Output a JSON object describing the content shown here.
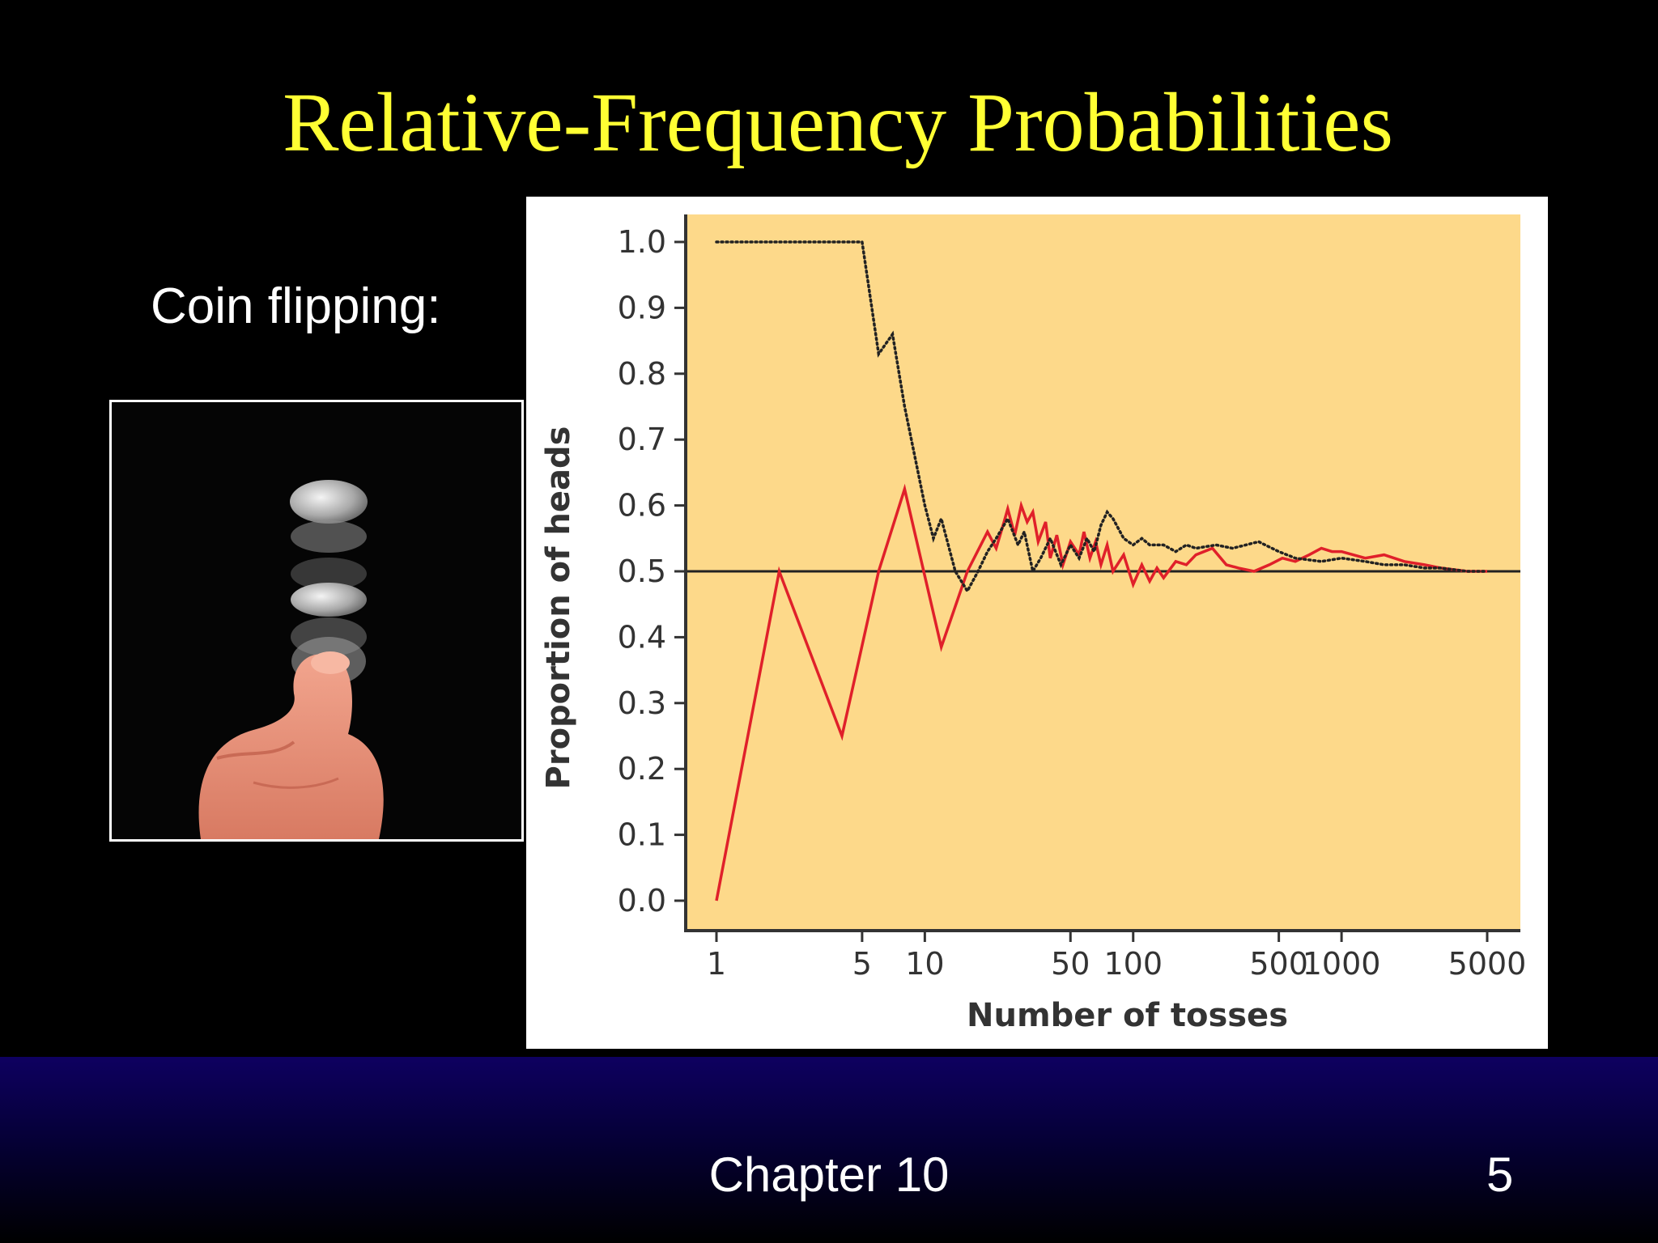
{
  "slide": {
    "title": "Relative-Frequency Probabilities",
    "caption": "Coin flipping:",
    "footer_label": "Chapter 10",
    "page_number": "5"
  },
  "colors": {
    "title": "#FFFF33",
    "plot_background": "#FDD98A",
    "solid_series": "#E0202A",
    "dotted_series": "#222222",
    "reference_line": "#222222",
    "footer_top": "#0E0060"
  },
  "photo": {
    "subject": "hand flipping a coin (stroboscopic)",
    "icon": "coin-flip-photo"
  },
  "chart_data": {
    "type": "line",
    "title": "",
    "xlabel": "Number of tosses",
    "ylabel": "Proportion of  heads",
    "x_scale": "log",
    "xlim": [
      1,
      5000
    ],
    "ylim": [
      0,
      1
    ],
    "x_ticks": [
      1,
      5,
      10,
      50,
      100,
      500,
      1000,
      5000
    ],
    "x_tick_labels": [
      "1",
      "5",
      "10",
      "50",
      "100",
      "500",
      "1000",
      "5000"
    ],
    "y_ticks": [
      0,
      0.1,
      0.2,
      0.3,
      0.4,
      0.5,
      0.6,
      0.7,
      0.8,
      0.9,
      1.0
    ],
    "y_tick_labels": [
      "0.0",
      "0.1",
      "0.2",
      "0.3",
      "0.4",
      "0.5",
      "0.6",
      "0.7",
      "0.8",
      "0.9",
      "1.0"
    ],
    "grid": false,
    "reference_line": {
      "y": 0.5
    },
    "series": [
      {
        "style": "solid",
        "color": "#E0202A",
        "x": [
          1,
          2,
          4,
          6,
          8,
          12,
          16,
          20,
          22,
          24,
          25,
          27,
          29,
          31,
          33,
          35,
          38,
          40,
          43,
          46,
          50,
          55,
          58,
          62,
          66,
          70,
          75,
          80,
          90,
          100,
          110,
          120,
          130,
          140,
          160,
          180,
          200,
          240,
          280,
          320,
          380,
          450,
          520,
          600,
          700,
          800,
          900,
          1000,
          1300,
          1600,
          2000,
          2500,
          3000,
          4000,
          5000
        ],
        "y": [
          0.0,
          0.5,
          0.25,
          0.5,
          0.625,
          0.385,
          0.5,
          0.56,
          0.535,
          0.575,
          0.595,
          0.555,
          0.6,
          0.575,
          0.59,
          0.545,
          0.575,
          0.52,
          0.555,
          0.51,
          0.545,
          0.525,
          0.56,
          0.52,
          0.545,
          0.51,
          0.54,
          0.5,
          0.525,
          0.48,
          0.51,
          0.485,
          0.505,
          0.49,
          0.515,
          0.51,
          0.525,
          0.535,
          0.51,
          0.505,
          0.5,
          0.51,
          0.52,
          0.515,
          0.525,
          0.535,
          0.53,
          0.53,
          0.52,
          0.525,
          0.515,
          0.51,
          0.505,
          0.5,
          0.5
        ]
      },
      {
        "style": "dotted",
        "color": "#222222",
        "x": [
          1,
          5,
          6,
          7,
          8,
          10,
          11,
          12,
          14,
          16,
          18,
          20,
          22,
          25,
          28,
          30,
          33,
          36,
          40,
          45,
          50,
          55,
          60,
          65,
          70,
          75,
          80,
          90,
          100,
          110,
          120,
          140,
          160,
          180,
          200,
          250,
          300,
          400,
          500,
          600,
          800,
          1000,
          1300,
          1600,
          2000,
          2500,
          3000,
          4000,
          5000
        ],
        "y": [
          1.0,
          1.0,
          0.83,
          0.86,
          0.75,
          0.6,
          0.55,
          0.58,
          0.5,
          0.47,
          0.5,
          0.53,
          0.55,
          0.58,
          0.54,
          0.56,
          0.5,
          0.52,
          0.55,
          0.51,
          0.54,
          0.52,
          0.55,
          0.53,
          0.57,
          0.59,
          0.58,
          0.55,
          0.54,
          0.55,
          0.54,
          0.54,
          0.53,
          0.54,
          0.535,
          0.54,
          0.535,
          0.545,
          0.53,
          0.52,
          0.515,
          0.52,
          0.515,
          0.51,
          0.51,
          0.505,
          0.505,
          0.5,
          0.5
        ]
      }
    ]
  }
}
